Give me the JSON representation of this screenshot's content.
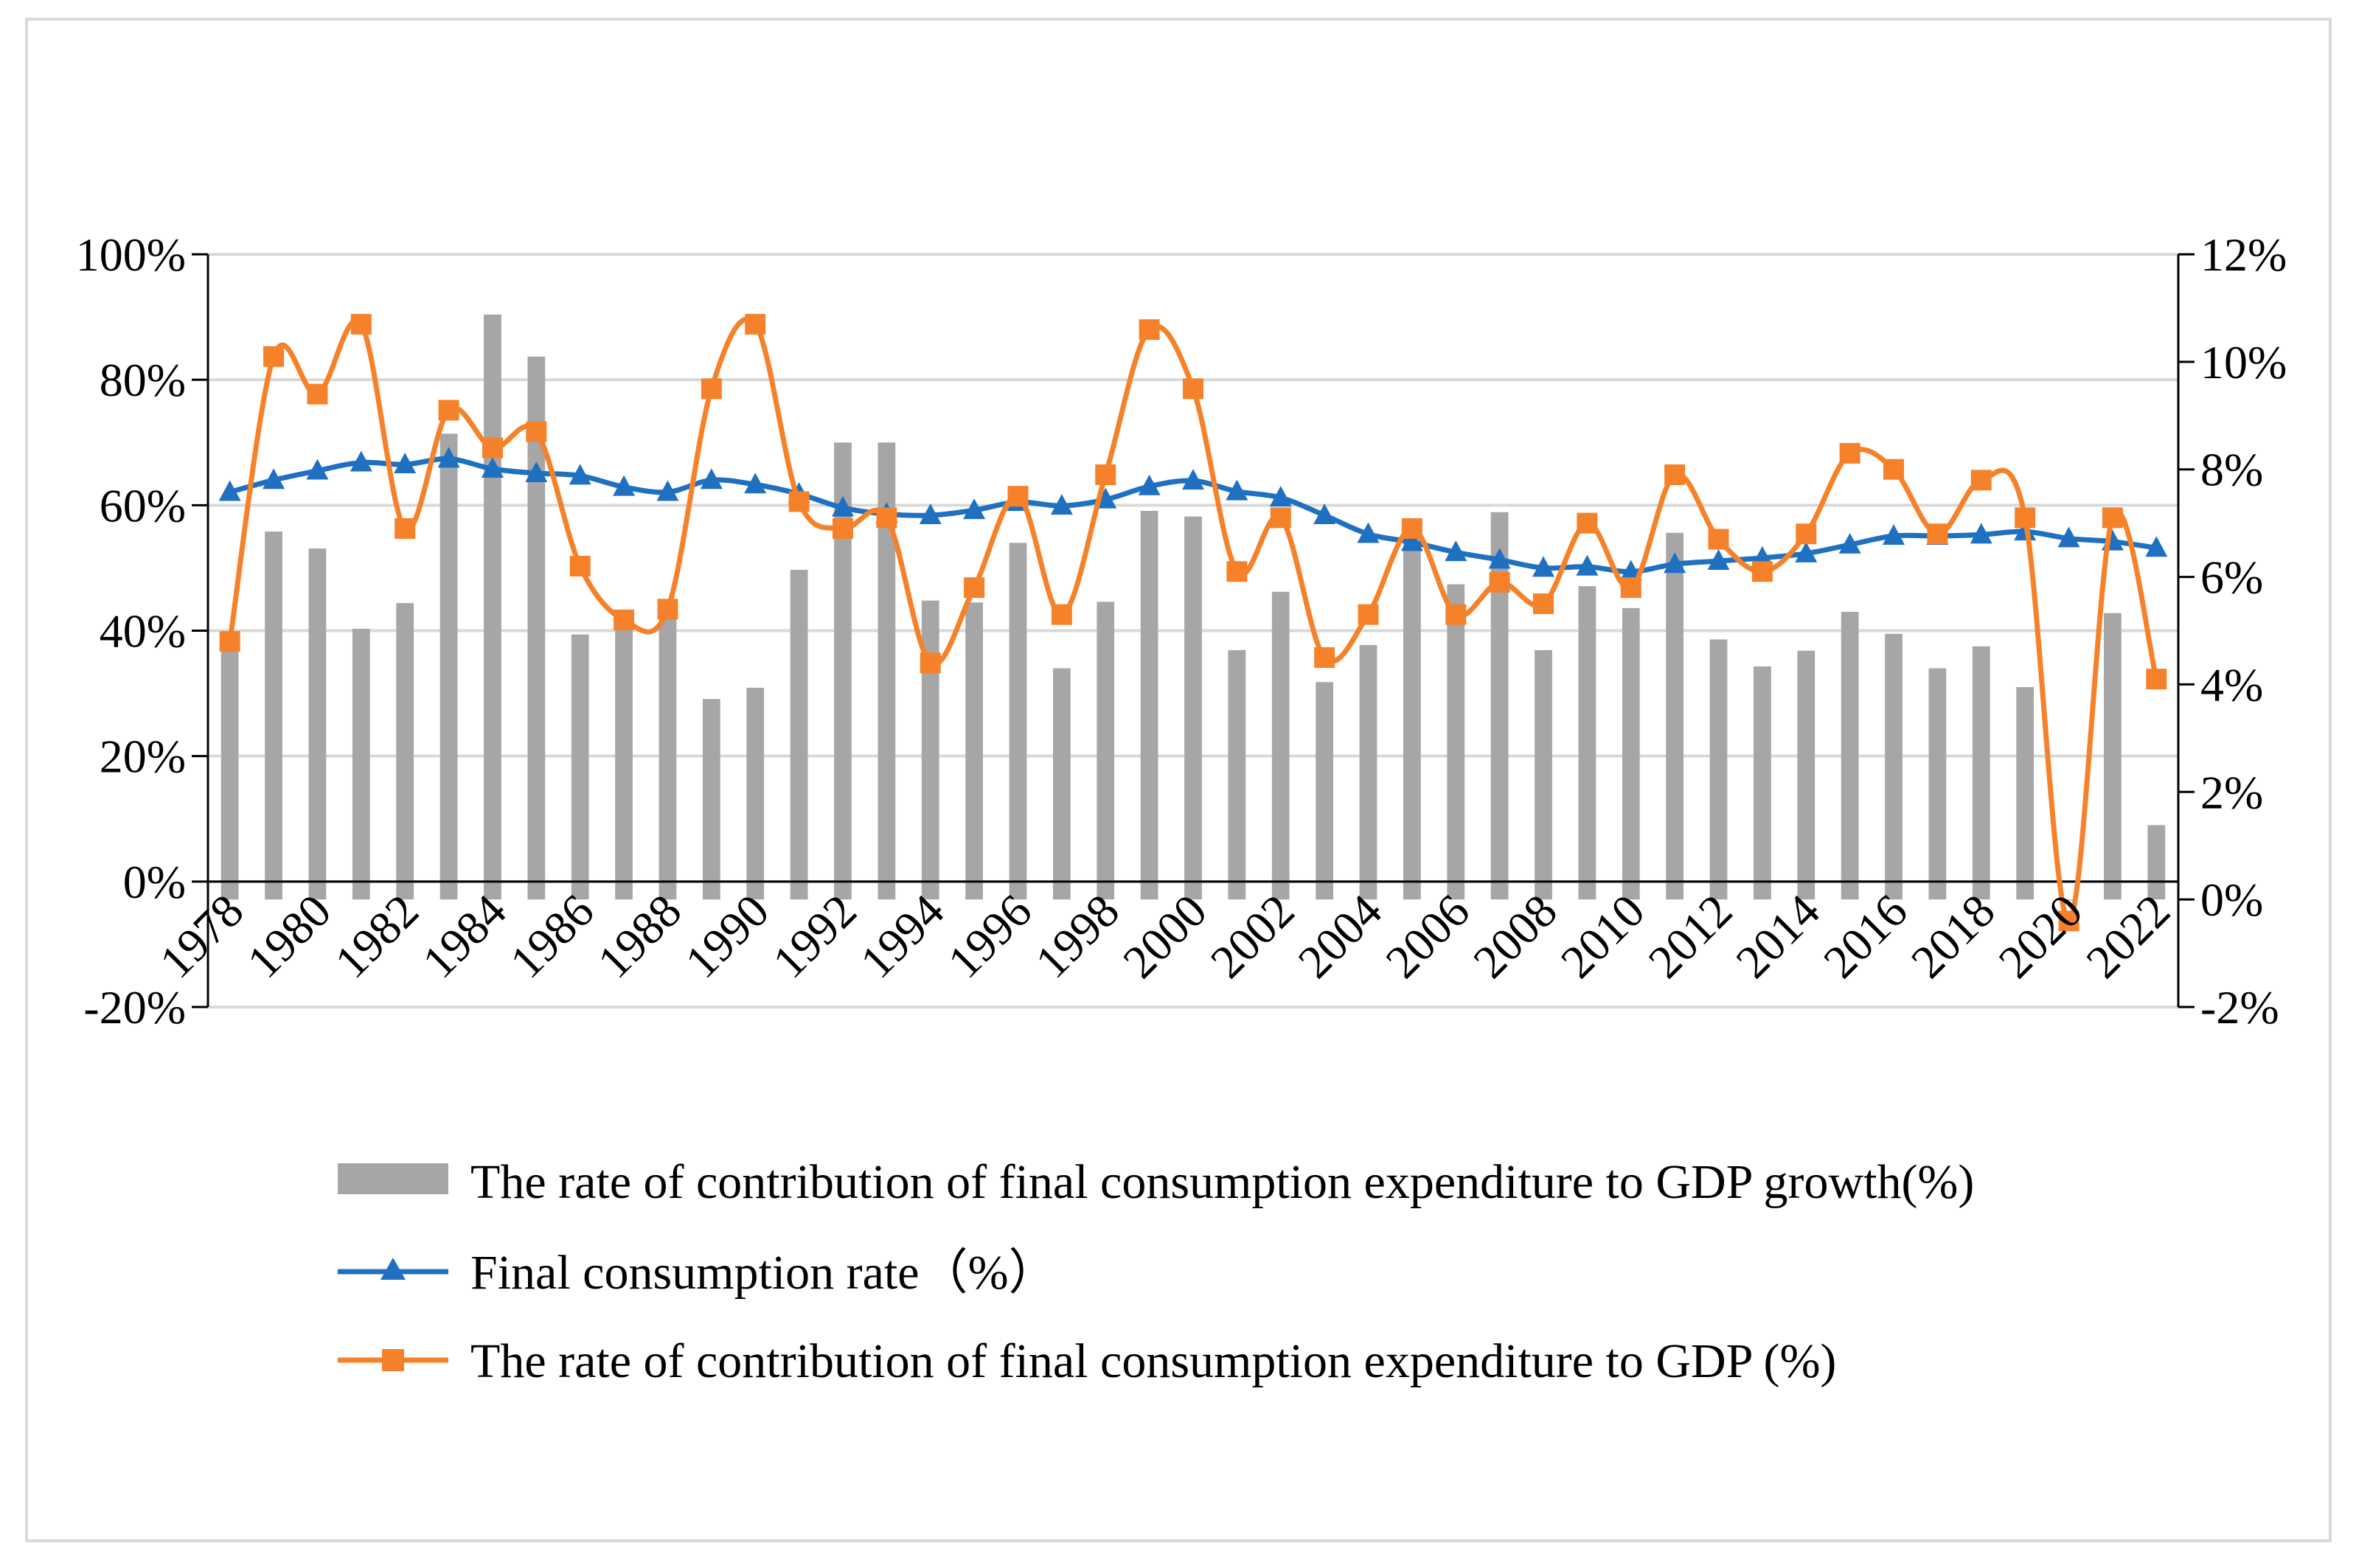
{
  "chart_data": {
    "type": "bar+line",
    "title": "",
    "categories": [
      1978,
      1979,
      1980,
      1981,
      1982,
      1983,
      1984,
      1985,
      1986,
      1987,
      1988,
      1989,
      1990,
      1991,
      1992,
      1993,
      1994,
      1995,
      1996,
      1997,
      1998,
      1999,
      2000,
      2001,
      2002,
      2003,
      2004,
      2005,
      2006,
      2007,
      2008,
      2009,
      2010,
      2011,
      2012,
      2013,
      2014,
      2015,
      2016,
      2017,
      2018,
      2019,
      2020,
      2021,
      2022
    ],
    "x_tick_labels": [
      "1978",
      "1980",
      "1982",
      "1984",
      "1986",
      "1988",
      "1990",
      "1992",
      "1994",
      "1996",
      "1998",
      "2000",
      "2002",
      "2004",
      "2006",
      "2008",
      "2010",
      "2012",
      "2014",
      "2016",
      "2018",
      "2020",
      "2022"
    ],
    "left_axis": {
      "min": -20,
      "max": 100,
      "step": 20,
      "ticks": [
        "-20%",
        "0%",
        "20%",
        "40%",
        "60%",
        "80%",
        "100%"
      ]
    },
    "right_axis": {
      "min": -2,
      "max": 12,
      "step": 2,
      "ticks": [
        "-2%",
        "0%",
        "2%",
        "4%",
        "6%",
        "8%",
        "10%",
        "12%"
      ]
    },
    "grid": true,
    "legend_position": "bottom",
    "series": [
      {
        "name": "The rate of contribution of final consumption expenditure to GDP growth(%)",
        "type": "bar",
        "axis": "left",
        "color": "#a6a6a6",
        "values": [
          39.4,
          55.8,
          53.1,
          40.3,
          44.4,
          71.4,
          90.4,
          83.7,
          39.4,
          42.1,
          42.9,
          29.1,
          30.9,
          49.7,
          70.0,
          70.0,
          44.8,
          44.5,
          54.0,
          34.0,
          44.6,
          59.1,
          58.2,
          36.9,
          46.2,
          31.8,
          37.7,
          57.9,
          47.4,
          58.9,
          36.9,
          47.1,
          43.6,
          55.6,
          38.6,
          34.3,
          36.8,
          43.0,
          39.5,
          34.0,
          37.5,
          31.0,
          -3.0,
          42.8,
          9.0
        ]
      },
      {
        "name": "Final consumption rate（%）",
        "type": "line",
        "axis": "left",
        "color": "#1f70c1",
        "marker": "triangle",
        "values": [
          62.1,
          64.0,
          65.5,
          66.8,
          66.5,
          67.4,
          65.8,
          65.1,
          64.7,
          62.9,
          62.1,
          64.0,
          63.3,
          61.8,
          59.6,
          58.6,
          58.4,
          59.2,
          60.5,
          59.9,
          60.9,
          63.0,
          63.9,
          62.2,
          61.2,
          58.4,
          55.4,
          54.1,
          52.5,
          51.3,
          50.0,
          50.2,
          49.4,
          50.6,
          51.1,
          51.6,
          52.3,
          53.7,
          55.1,
          55.1,
          55.3,
          55.8,
          54.7,
          54.2,
          53.2
        ]
      },
      {
        "name": "The rate of contribution of final consumption expenditure to GDP (%)",
        "type": "line",
        "axis": "right",
        "color": "#f5822a",
        "marker": "square",
        "values": [
          4.8,
          10.1,
          9.4,
          10.7,
          6.9,
          9.1,
          8.4,
          8.7,
          6.2,
          5.2,
          5.4,
          9.5,
          10.7,
          7.4,
          6.9,
          7.1,
          4.4,
          5.8,
          7.5,
          5.3,
          7.9,
          10.6,
          9.5,
          6.1,
          7.1,
          4.5,
          5.3,
          6.9,
          5.3,
          5.9,
          5.5,
          7.0,
          5.8,
          7.9,
          6.7,
          6.1,
          6.8,
          8.3,
          8.0,
          6.8,
          7.8,
          7.1,
          -0.4,
          7.1,
          4.1
        ]
      }
    ]
  }
}
